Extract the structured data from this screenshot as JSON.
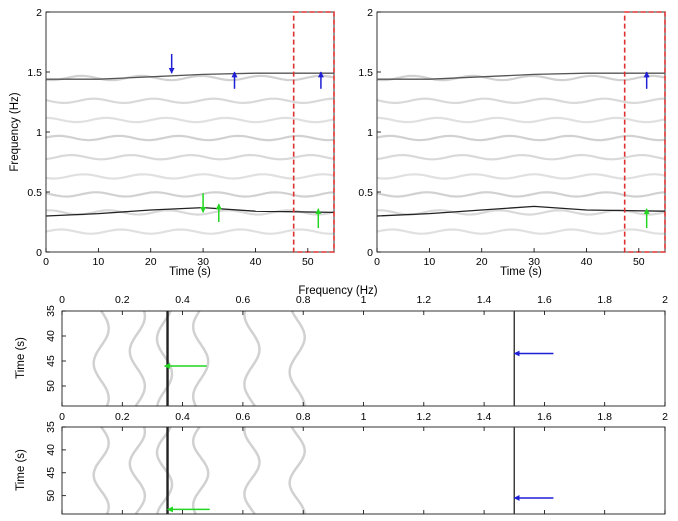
{
  "chart_data": [
    {
      "type": "heatmap",
      "id": "top-left",
      "xlabel": "Time (s)",
      "ylabel": "Frequency (Hz)",
      "xlim": [
        0,
        55
      ],
      "ylim": [
        0,
        2
      ],
      "xticks": [
        "0",
        "10",
        "20",
        "30",
        "40",
        "50"
      ],
      "yticks": [
        "0",
        "0.5",
        "1",
        "1.5",
        "2"
      ],
      "ridges_hz": [
        0.17,
        0.33,
        0.48,
        0.63,
        0.79,
        0.95,
        1.1,
        1.26,
        1.45
      ],
      "dominant_ridges": [
        {
          "name": "high",
          "points": [
            [
              0,
              1.44
            ],
            [
              10,
              1.44
            ],
            [
              20,
              1.46
            ],
            [
              30,
              1.48
            ],
            [
              40,
              1.49
            ],
            [
              55,
              1.49
            ]
          ],
          "color": "#555555"
        },
        {
          "name": "low",
          "points": [
            [
              0,
              0.3
            ],
            [
              10,
              0.32
            ],
            [
              20,
              0.35
            ],
            [
              30,
              0.37
            ],
            [
              40,
              0.34
            ],
            [
              55,
              0.33
            ]
          ],
          "color": "#222222"
        }
      ],
      "highlight_box": {
        "x": [
          47.3,
          55
        ],
        "y": [
          0,
          2
        ],
        "color": "#e03030"
      },
      "arrows": [
        {
          "x": 24,
          "y_from": 1.65,
          "y_to": 1.49,
          "color": "#1f1fd6"
        },
        {
          "x": 36,
          "y_from": 1.36,
          "y_to": 1.5,
          "color": "#1f1fd6"
        },
        {
          "x": 52.5,
          "y_from": 1.36,
          "y_to": 1.5,
          "color": "#1f1fd6"
        },
        {
          "x": 30,
          "y_from": 0.49,
          "y_to": 0.33,
          "color": "#22d622"
        },
        {
          "x": 33,
          "y_from": 0.25,
          "y_to": 0.4,
          "color": "#22d622"
        },
        {
          "x": 52,
          "y_from": 0.2,
          "y_to": 0.36,
          "color": "#22d622"
        }
      ]
    },
    {
      "type": "heatmap",
      "id": "top-right",
      "xlabel": "Time (s)",
      "ylabel": "",
      "xlim": [
        0,
        55
      ],
      "ylim": [
        0,
        2
      ],
      "xticks": [
        "0",
        "10",
        "20",
        "30",
        "40",
        "50"
      ],
      "yticks": [
        "0",
        "0.5",
        "1",
        "1.5",
        "2"
      ],
      "ridges_hz": [
        0.17,
        0.33,
        0.48,
        0.63,
        0.79,
        0.95,
        1.1,
        1.26,
        1.45
      ],
      "dominant_ridges": [
        {
          "name": "high",
          "points": [
            [
              0,
              1.44
            ],
            [
              10,
              1.44
            ],
            [
              20,
              1.46
            ],
            [
              30,
              1.48
            ],
            [
              40,
              1.49
            ],
            [
              55,
              1.49
            ]
          ],
          "color": "#555555"
        },
        {
          "name": "low",
          "points": [
            [
              0,
              0.3
            ],
            [
              10,
              0.32
            ],
            [
              20,
              0.35
            ],
            [
              30,
              0.38
            ],
            [
              40,
              0.35
            ],
            [
              55,
              0.34
            ]
          ],
          "color": "#222222"
        }
      ],
      "highlight_box": {
        "x": [
          47.3,
          55
        ],
        "y": [
          0,
          2
        ],
        "color": "#e03030"
      },
      "arrows": [
        {
          "x": 51.5,
          "y_from": 1.36,
          "y_to": 1.5,
          "color": "#1f1fd6"
        },
        {
          "x": 51.5,
          "y_from": 0.2,
          "y_to": 0.36,
          "color": "#22d622"
        }
      ]
    },
    {
      "type": "heatmap",
      "id": "middle",
      "xlabel": "Frequency (Hz)",
      "ylabel": "Time (s)",
      "xlim": [
        0,
        2
      ],
      "ylim": [
        35,
        54
      ],
      "xticks": [
        "0",
        "0.2",
        "0.4",
        "0.6",
        "0.8",
        "1",
        "1.2",
        "1.4",
        "1.6",
        "1.8",
        "2"
      ],
      "yticks": [
        "35",
        "40",
        "45",
        "50"
      ],
      "ridges_hz": [
        0.13,
        0.25,
        0.34,
        0.46,
        0.63,
        0.78
      ],
      "dominant_ridges": [
        {
          "name": "low",
          "freq": 0.35,
          "color": "#222222"
        },
        {
          "name": "high",
          "freq": 1.5,
          "color": "#333333"
        }
      ],
      "arrows": [
        {
          "from_x": 0.48,
          "to_x": 0.34,
          "t": 46,
          "color": "#22d622"
        },
        {
          "from_x": 1.63,
          "to_x": 1.5,
          "t": 43.5,
          "color": "#1f1fd6"
        }
      ]
    },
    {
      "type": "heatmap",
      "id": "bottom",
      "xlabel": "",
      "ylabel": "Time (s)",
      "xlim": [
        0,
        2
      ],
      "ylim": [
        35,
        54
      ],
      "xticks": [
        "0",
        "0.2",
        "0.4",
        "0.6",
        "0.8",
        "1",
        "1.2",
        "1.4",
        "1.6",
        "1.8",
        "2"
      ],
      "yticks": [
        "35",
        "40",
        "45",
        "50"
      ],
      "ridges_hz": [
        0.13,
        0.25,
        0.34,
        0.46,
        0.63,
        0.78
      ],
      "dominant_ridges": [
        {
          "name": "low",
          "freq": 0.35,
          "color": "#222222"
        },
        {
          "name": "high",
          "freq": 1.5,
          "color": "#333333"
        }
      ],
      "arrows": [
        {
          "from_x": 0.49,
          "to_x": 0.35,
          "t": 53,
          "color": "#22d622"
        },
        {
          "from_x": 1.63,
          "to_x": 1.5,
          "t": 50.5,
          "color": "#1f1fd6"
        }
      ]
    }
  ]
}
